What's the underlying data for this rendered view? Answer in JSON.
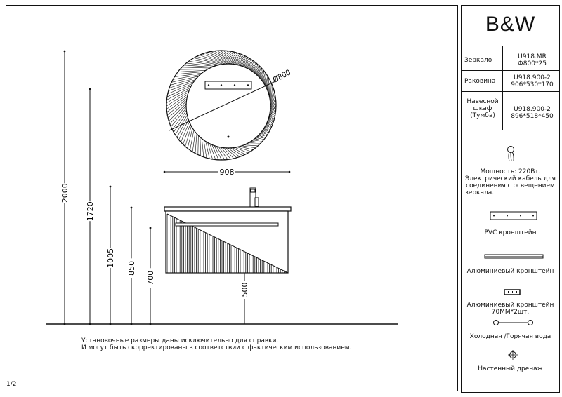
{
  "logo": "B&W",
  "spec_table": [
    {
      "label": "Зеркало",
      "value_line1": "U918.MR",
      "value_line2": "Ф800*25"
    },
    {
      "label": "Раковина",
      "value_line1": "U918.900-2",
      "value_line2": "906*530*170"
    },
    {
      "label_lines": [
        "Навесной",
        "шкаф",
        "(Тумба)"
      ],
      "value_line1": "U918.900-2",
      "value_line2": "896*518*450"
    }
  ],
  "legend": {
    "power_icon": "electric-cable-icon",
    "power_line1": "Мощность: 220Вт.",
    "power_line2": "Электрический кабель для",
    "power_line3": "соединения с освещением",
    "power_line4": "зеркала.",
    "pvc_bracket": "PVC кронштейн",
    "alu_bracket": "Алюминиевый кронштейн",
    "alu_bracket_small_line1": "Алюминиевый кронштейн",
    "alu_bracket_small_line2": "70MM*2шт.",
    "water": "Холодная /Горячая вода",
    "drain": "Настенный дренаж"
  },
  "dimensions": {
    "heights": [
      "2000",
      "1720",
      "1005",
      "850",
      "700"
    ],
    "mirror_diameter": "Ø800",
    "width": "908",
    "cabinet_height_from_floor": "500"
  },
  "notes": {
    "line1": "Установочные размеры даны исключительно для справки.",
    "line2": "И могут быть скорректированы в соответствии с фактическим использованием."
  },
  "page": "1/2"
}
